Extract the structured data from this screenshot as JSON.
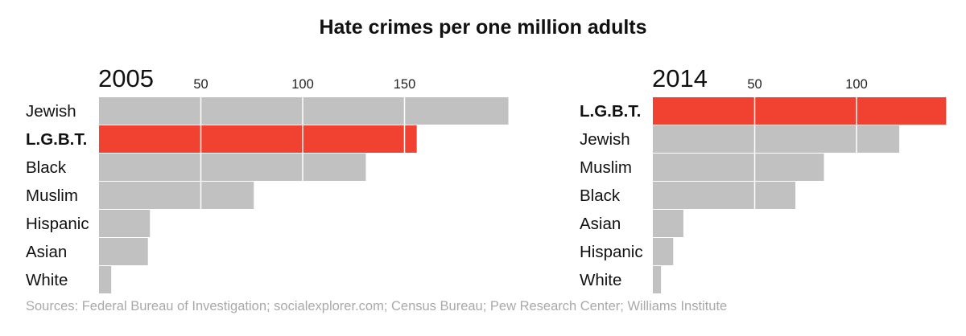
{
  "title": "Hate crimes per one million adults",
  "source": "Sources: Federal Bureau of Investigation; socialexplorer.com; Census Bureau; Pew Research Center; Williams Institute",
  "colors": {
    "highlight": "#f04131",
    "bar": "#c1c1c1",
    "grid": "#ffffff"
  },
  "chart_data": [
    {
      "type": "bar",
      "orientation": "horizontal",
      "year_label": "2005",
      "categories": [
        "Jewish",
        "L.G.B.T.",
        "Black",
        "Muslim",
        "Hispanic",
        "Asian",
        "White"
      ],
      "highlight": "L.G.B.T.",
      "values": [
        201,
        156,
        131,
        76,
        25,
        24,
        6
      ],
      "ticks": [
        50,
        100,
        150
      ],
      "xlim": [
        0,
        200
      ]
    },
    {
      "type": "bar",
      "orientation": "horizontal",
      "year_label": "2014",
      "categories": [
        "L.G.B.T.",
        "Jewish",
        "Muslim",
        "Black",
        "Asian",
        "Hispanic",
        "White"
      ],
      "highlight": "L.G.B.T.",
      "values": [
        144,
        121,
        84,
        70,
        15,
        10,
        4
      ],
      "ticks": [
        50,
        100
      ],
      "xlim": [
        0,
        150
      ]
    }
  ]
}
